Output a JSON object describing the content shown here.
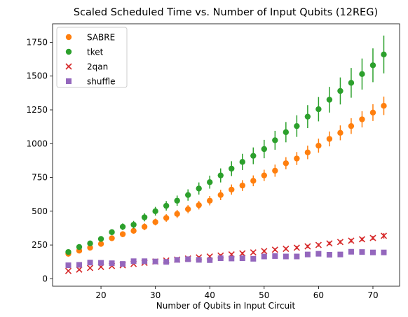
{
  "chart_data": {
    "type": "scatter",
    "title": "Scaled Scheduled Time vs. Number of Input Qubits (12REG)",
    "xlabel": "Number of Qubits in Input Circuit",
    "ylabel": "",
    "xlim": [
      11.1,
      74.9
    ],
    "ylim": [
      -55,
      1887
    ],
    "xticks": [
      20,
      30,
      40,
      50,
      60,
      70
    ],
    "yticks": [
      0,
      250,
      500,
      750,
      1000,
      1250,
      1500,
      1750
    ],
    "ytick_labels": [
      "0",
      "250",
      "500",
      "750",
      "1000",
      "1250",
      "1500",
      "1750"
    ],
    "grid": false,
    "legend": "top-left",
    "x": [
      14,
      16,
      18,
      20,
      22,
      24,
      26,
      28,
      30,
      32,
      34,
      36,
      38,
      40,
      42,
      44,
      46,
      48,
      50,
      52,
      54,
      56,
      58,
      60,
      62,
      64,
      66,
      68,
      70,
      72
    ],
    "series": [
      {
        "name": "SABRE",
        "marker": "circle",
        "color": "#ff7f0e",
        "values": [
          185,
          208,
          230,
          258,
          300,
          330,
          355,
          385,
          420,
          450,
          480,
          515,
          545,
          578,
          620,
          660,
          690,
          725,
          765,
          800,
          855,
          890,
          935,
          985,
          1035,
          1080,
          1130,
          1180,
          1230,
          1280
        ],
        "errors": [
          15,
          15,
          18,
          18,
          20,
          22,
          22,
          25,
          25,
          28,
          30,
          30,
          32,
          35,
          38,
          38,
          40,
          40,
          42,
          45,
          45,
          48,
          50,
          52,
          55,
          55,
          58,
          60,
          62,
          68
        ]
      },
      {
        "name": "tket",
        "marker": "circle",
        "color": "#2ca02c",
        "values": [
          198,
          235,
          262,
          295,
          345,
          385,
          400,
          455,
          500,
          540,
          578,
          620,
          668,
          715,
          765,
          815,
          865,
          910,
          960,
          1025,
          1085,
          1130,
          1200,
          1255,
          1325,
          1390,
          1450,
          1515,
          1580,
          1660
        ],
        "errors": [
          18,
          18,
          20,
          20,
          22,
          25,
          28,
          30,
          32,
          35,
          38,
          42,
          45,
          48,
          52,
          55,
          60,
          62,
          68,
          70,
          75,
          80,
          85,
          90,
          95,
          100,
          110,
          115,
          125,
          140
        ]
      },
      {
        "name": "2qan",
        "marker": "x",
        "color": "#d62728",
        "values": [
          58,
          68,
          80,
          88,
          95,
          100,
          110,
          118,
          128,
          135,
          142,
          150,
          158,
          165,
          172,
          180,
          188,
          195,
          205,
          215,
          222,
          230,
          240,
          250,
          262,
          272,
          282,
          292,
          302,
          318
        ],
        "errors": [
          6,
          6,
          6,
          6,
          7,
          7,
          7,
          8,
          8,
          8,
          8,
          9,
          9,
          9,
          10,
          10,
          10,
          10,
          11,
          11,
          11,
          12,
          12,
          12,
          13,
          13,
          14,
          14,
          15,
          20
        ]
      },
      {
        "name": "shuffle",
        "marker": "square",
        "color": "#9467bd",
        "values": [
          100,
          103,
          120,
          118,
          115,
          110,
          130,
          130,
          128,
          125,
          140,
          145,
          140,
          138,
          152,
          150,
          152,
          148,
          165,
          168,
          165,
          165,
          180,
          185,
          178,
          180,
          200,
          198,
          195,
          195
        ],
        "errors": [
          5,
          5,
          6,
          6,
          6,
          6,
          6,
          6,
          6,
          6,
          6,
          6,
          6,
          6,
          7,
          7,
          7,
          7,
          7,
          7,
          7,
          7,
          8,
          8,
          8,
          8,
          8,
          8,
          8,
          8
        ]
      }
    ]
  }
}
